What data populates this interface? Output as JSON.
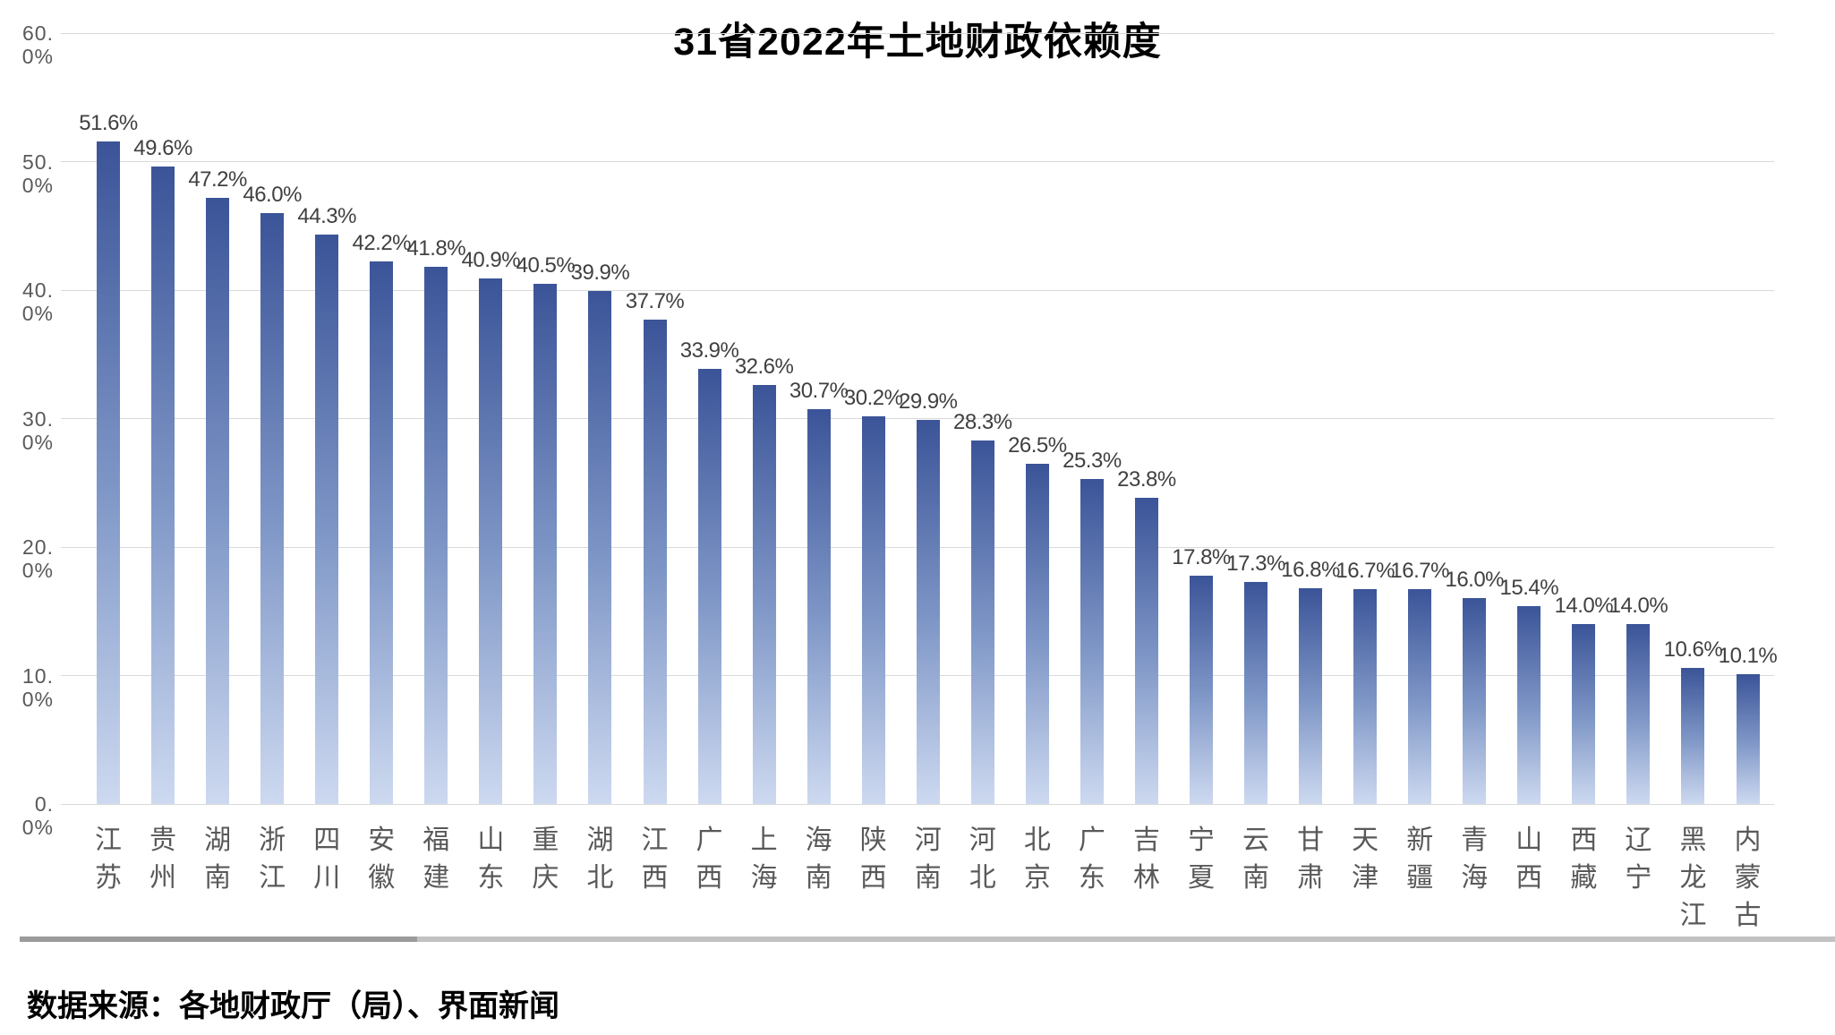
{
  "chart_data": {
    "type": "bar",
    "title": "31省2022年土地财政依赖度",
    "categories": [
      "江苏",
      "贵州",
      "湖南",
      "浙江",
      "四川",
      "安徽",
      "福建",
      "山东",
      "重庆",
      "湖北",
      "江西",
      "广西",
      "上海",
      "海南",
      "陕西",
      "河南",
      "河北",
      "北京",
      "广东",
      "吉林",
      "宁夏",
      "云南",
      "甘肃",
      "天津",
      "新疆",
      "青海",
      "山西",
      "西藏",
      "辽宁",
      "黑龙江",
      "内蒙古"
    ],
    "values": [
      51.6,
      49.6,
      47.2,
      46.0,
      44.3,
      42.2,
      41.8,
      40.9,
      40.5,
      39.9,
      37.7,
      33.9,
      32.6,
      30.7,
      30.2,
      29.9,
      28.3,
      26.5,
      25.3,
      23.8,
      17.8,
      17.3,
      16.8,
      16.7,
      16.7,
      16.0,
      15.4,
      14.0,
      14.0,
      10.6,
      10.1
    ],
    "value_labels": [
      "51.6%",
      "49.6%",
      "47.2%",
      "46.0%",
      "44.3%",
      "42.2%",
      "41.8%",
      "40.9%",
      "40.5%",
      "39.9%",
      "37.7%",
      "33.9%",
      "32.6%",
      "30.7%",
      "30.2%",
      "29.9%",
      "28.3%",
      "26.5%",
      "25.3%",
      "23.8%",
      "17.8%",
      "17.3%",
      "16.8%",
      "16.7%",
      "16.7%",
      "16.0%",
      "15.4%",
      "14.0%",
      "14.0%",
      "10.6%",
      "10.1%"
    ],
    "y_ticks": [
      {
        "label": "60. 0%",
        "value": 60
      },
      {
        "label": "50. 0%",
        "value": 50
      },
      {
        "label": "40. 0%",
        "value": 40
      },
      {
        "label": "30. 0%",
        "value": 30
      },
      {
        "label": "20. 0%",
        "value": 20
      },
      {
        "label": "10. 0%",
        "value": 10
      },
      {
        "label": "0. 0%",
        "value": 0
      }
    ],
    "ylim": [
      0,
      60
    ],
    "xlabel": "",
    "ylabel": "",
    "grid": "horizontal",
    "legend": "none",
    "source": "数据来源：各地财政厅（局）、界面新闻",
    "colors": {
      "bar_gradient_top": "#3b5498",
      "bar_gradient_mid": "#7e96c6",
      "bar_gradient_bottom": "#cdd9f0",
      "gridline": "#d9d9d9",
      "tick_text": "#595959",
      "value_label_text": "#404040",
      "category_text": "#595959",
      "title_text": "#000000",
      "divider_left": "#9b9b9b",
      "divider_right": "#c2c2c2"
    }
  }
}
